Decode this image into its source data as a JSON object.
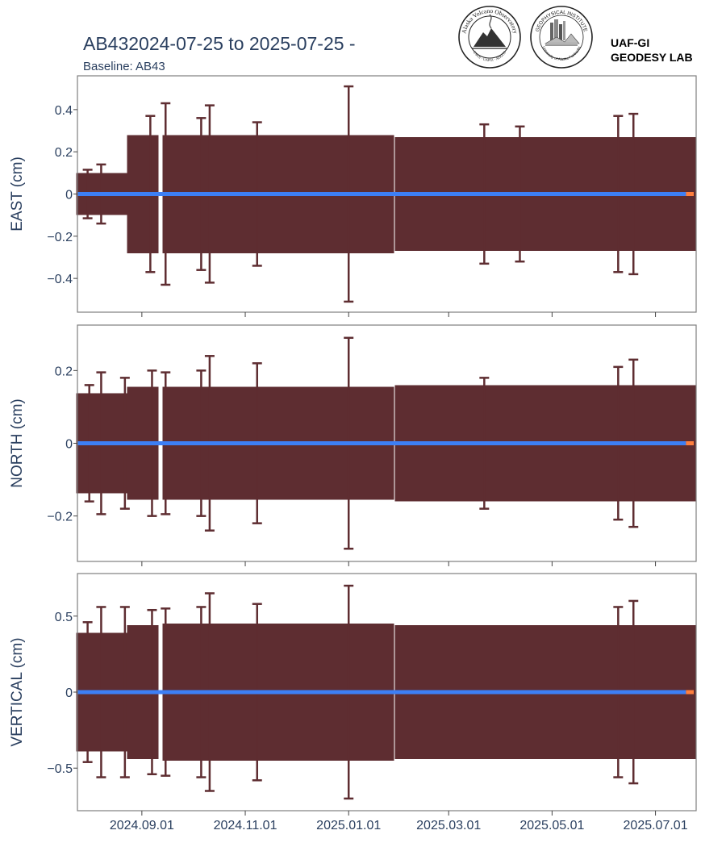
{
  "header": {
    "title": "AB432024-07-25 to 2025-07-25 -",
    "subtitle": "Baseline: AB43",
    "lab_line1": "UAF-GI",
    "lab_line2": "GEODESY LAB"
  },
  "logos": {
    "avo": {
      "ring_text": "Alaska Volcano Observatory",
      "bottom_text": "USGS · UAFGI · ADGGS"
    },
    "gi": {
      "ring_text": "GEOPHYSICAL INSTITUTE",
      "bottom_text": "University of Alaska Fairbanks"
    }
  },
  "colors": {
    "errorbar": "#5e2d31",
    "series": "#3d7ff5",
    "series_recent": "#ff7f3e",
    "axis_text": "#2a3f5f",
    "frame": "#7f7f7f"
  },
  "chart_data": {
    "type": "scatter",
    "x_range": [
      "2024-07-25",
      "2025-07-25"
    ],
    "x_ticks": [
      "2024.09.01",
      "2024.11.01",
      "2025.01.01",
      "2025.03.01",
      "2025.05.01",
      "2025.07.01"
    ],
    "x_tick_dates": [
      "2024-09-01",
      "2024-11-01",
      "2025-01-01",
      "2025-03-01",
      "2025-05-01",
      "2025-07-01"
    ],
    "data_gaps": [
      [
        "2024-09-11",
        "2024-09-13"
      ],
      [
        "2025-01-28",
        "2025-01-28"
      ]
    ],
    "recent_segment_start": "2025-07-19",
    "grid": false,
    "legend": "none",
    "panels": [
      {
        "ylabel": "EAST (cm)",
        "ylim": [
          -0.56,
          0.56
        ],
        "y_ticks": [
          0.4,
          0.2,
          0,
          -0.2,
          -0.4
        ],
        "y_tick_labels": [
          "0.4",
          "0.2",
          "0",
          "−0.2",
          "−0.4"
        ],
        "value": 0,
        "band_segments": [
          {
            "from": "2024-07-25",
            "to": "2024-08-24",
            "error": 0.1
          },
          {
            "from": "2024-08-24",
            "to": "2024-09-11",
            "error": 0.28
          },
          {
            "from": "2024-09-13",
            "to": "2025-01-28",
            "error": 0.28
          },
          {
            "from": "2025-01-28",
            "to": "2025-07-25",
            "error": 0.27
          }
        ],
        "outlier_errors": [
          {
            "date": "2024-07-31",
            "error": 0.115
          },
          {
            "date": "2024-08-08",
            "error": 0.14
          },
          {
            "date": "2024-09-06",
            "error": 0.37
          },
          {
            "date": "2024-09-15",
            "error": 0.43
          },
          {
            "date": "2024-10-06",
            "error": 0.36
          },
          {
            "date": "2024-10-11",
            "error": 0.42
          },
          {
            "date": "2024-11-08",
            "error": 0.34
          },
          {
            "date": "2025-01-01",
            "error": 0.51
          },
          {
            "date": "2025-03-22",
            "error": 0.33
          },
          {
            "date": "2025-04-12",
            "error": 0.32
          },
          {
            "date": "2025-06-09",
            "error": 0.37
          },
          {
            "date": "2025-06-18",
            "error": 0.38
          }
        ]
      },
      {
        "ylabel": "NORTH (cm)",
        "ylim": [
          -0.325,
          0.325
        ],
        "y_ticks": [
          0.2,
          0,
          -0.2
        ],
        "y_tick_labels": [
          "0.2",
          "0",
          "−0.2"
        ],
        "value": 0,
        "band_segments": [
          {
            "from": "2024-07-25",
            "to": "2024-08-24",
            "error": 0.137
          },
          {
            "from": "2024-08-24",
            "to": "2024-09-11",
            "error": 0.155
          },
          {
            "from": "2024-09-13",
            "to": "2025-01-28",
            "error": 0.155
          },
          {
            "from": "2025-01-28",
            "to": "2025-07-25",
            "error": 0.16
          }
        ],
        "outlier_errors": [
          {
            "date": "2024-08-01",
            "error": 0.16
          },
          {
            "date": "2024-08-08",
            "error": 0.195
          },
          {
            "date": "2024-08-22",
            "error": 0.18
          },
          {
            "date": "2024-09-07",
            "error": 0.2
          },
          {
            "date": "2024-09-15",
            "error": 0.195
          },
          {
            "date": "2024-10-06",
            "error": 0.2
          },
          {
            "date": "2024-10-11",
            "error": 0.24
          },
          {
            "date": "2024-11-08",
            "error": 0.22
          },
          {
            "date": "2025-01-01",
            "error": 0.29
          },
          {
            "date": "2025-03-22",
            "error": 0.18
          },
          {
            "date": "2025-06-09",
            "error": 0.21
          },
          {
            "date": "2025-06-18",
            "error": 0.23
          }
        ]
      },
      {
        "ylabel": "VERTICAL (cm)",
        "ylim": [
          -0.78,
          0.78
        ],
        "y_ticks": [
          0.5,
          0,
          -0.5
        ],
        "y_tick_labels": [
          "0.5",
          "0",
          "−0.5"
        ],
        "value": 0,
        "band_segments": [
          {
            "from": "2024-07-25",
            "to": "2024-08-24",
            "error": 0.39
          },
          {
            "from": "2024-08-24",
            "to": "2024-09-11",
            "error": 0.44
          },
          {
            "from": "2024-09-13",
            "to": "2025-01-28",
            "error": 0.45
          },
          {
            "from": "2025-01-28",
            "to": "2025-07-25",
            "error": 0.44
          }
        ],
        "outlier_errors": [
          {
            "date": "2024-07-31",
            "error": 0.46
          },
          {
            "date": "2024-08-08",
            "error": 0.56
          },
          {
            "date": "2024-08-22",
            "error": 0.56
          },
          {
            "date": "2024-09-07",
            "error": 0.54
          },
          {
            "date": "2024-09-15",
            "error": 0.55
          },
          {
            "date": "2024-10-06",
            "error": 0.56
          },
          {
            "date": "2024-10-11",
            "error": 0.65
          },
          {
            "date": "2024-11-08",
            "error": 0.58
          },
          {
            "date": "2025-01-01",
            "error": 0.7
          },
          {
            "date": "2025-06-09",
            "error": 0.56
          },
          {
            "date": "2025-06-18",
            "error": 0.6
          }
        ]
      }
    ]
  }
}
